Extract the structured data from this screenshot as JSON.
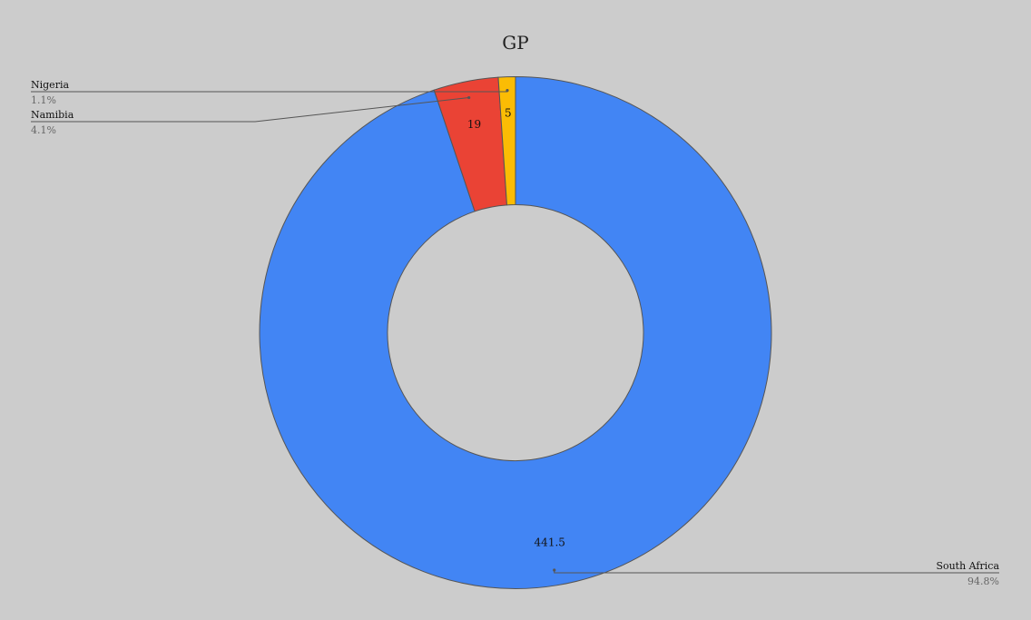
{
  "chart_data": {
    "type": "pie",
    "subtype": "donut",
    "title": "GP",
    "slices": [
      {
        "label": "South Africa",
        "value": 441.5,
        "percent_label": "94.8%",
        "value_label": "441.5",
        "color": "#4285f4"
      },
      {
        "label": "Namibia",
        "value": 19,
        "percent_label": "4.1%",
        "value_label": "19",
        "color": "#ea4335"
      },
      {
        "label": "Nigeria",
        "value": 5,
        "percent_label": "1.1%",
        "value_label": "5",
        "color": "#fbbc04"
      }
    ],
    "legend": "none",
    "start_angle": "top",
    "direction": "clockwise"
  },
  "colors": {
    "background": "#cccccc",
    "outline": "#555555",
    "leader": "#555555"
  }
}
